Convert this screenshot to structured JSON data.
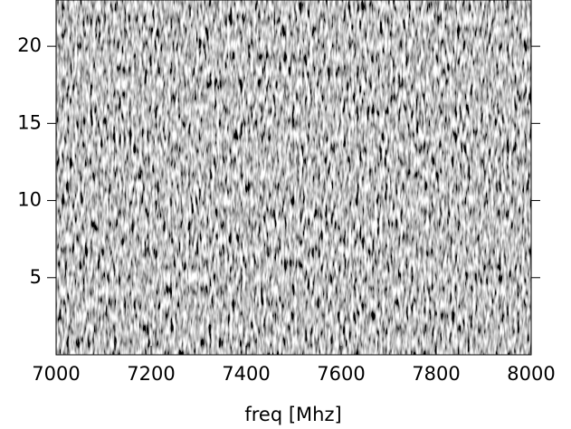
{
  "chart_data": {
    "type": "heatmap",
    "xlabel": "freq [Mhz]",
    "xlim": [
      7000,
      8000
    ],
    "xticks": [
      7000,
      7200,
      7400,
      7600,
      7800,
      8000
    ],
    "ylim": [
      0,
      23
    ],
    "yticks": [
      5,
      10,
      15,
      20
    ]
  }
}
